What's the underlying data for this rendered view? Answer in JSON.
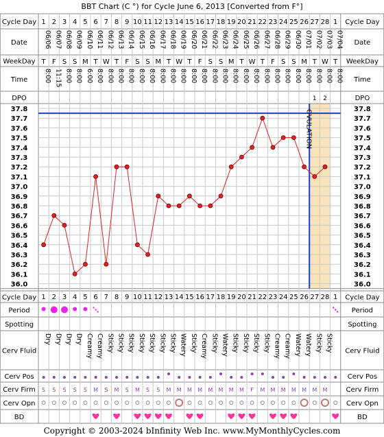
{
  "title": "BBT Chart (C °) for Cycle June 6, 2013  [Converted from F°]",
  "footer": "Copyright © 2003-2024 bInfinity Web Inc.    www.MyMonthlyCycles.com",
  "ovulation_label": "OVULATION",
  "row_labels": {
    "cycle_day": "Cycle Day",
    "date": "Date",
    "weekday": "WeekDay",
    "time": "Time",
    "dpo": "DPO",
    "period": "Period",
    "spotting": "Spotting",
    "cerv_fluid": "Cerv Fluid",
    "cerv_pos": "Cerv Pos",
    "cerv_firm": "Cerv Firm",
    "cerv_opn": "Cerv Opn",
    "bd": "BD"
  },
  "columns": {
    "cycle_days": [
      "1",
      "2",
      "3",
      "4",
      "5",
      "6",
      "7",
      "8",
      "9",
      "10",
      "11",
      "12",
      "13",
      "14",
      "15",
      "16",
      "17",
      "18",
      "19",
      "20",
      "21",
      "22",
      "23",
      "24",
      "25",
      "26",
      "27",
      "28",
      "1"
    ],
    "dates": [
      "06/06",
      "06/07",
      "06/08",
      "06/09",
      "06/10",
      "06/11",
      "06/12",
      "06/13",
      "06/14",
      "06/15",
      "06/16",
      "06/17",
      "06/18",
      "06/19",
      "06/20",
      "06/21",
      "06/22",
      "06/23",
      "06/24",
      "06/25",
      "06/26",
      "06/27",
      "06/28",
      "06/29",
      "06/30",
      "07/01",
      "07/02",
      "07/03",
      "07/04"
    ],
    "weekdays": [
      "T",
      "F",
      "S",
      "S",
      "M",
      "T",
      "W",
      "T",
      "F",
      "S",
      "S",
      "M",
      "T",
      "W",
      "T",
      "F",
      "S",
      "S",
      "M",
      "T",
      "W",
      "T",
      "F",
      "S",
      "S",
      "M",
      "T",
      "W",
      "T"
    ],
    "times": [
      "8:00",
      "11:15",
      "8:00",
      "8:00",
      "6:00",
      "8:00",
      "8:00",
      "8:00",
      "8:00",
      "8:00",
      "8:00",
      "8:00",
      "8:00",
      "8:00",
      "8:00",
      "8:00",
      "8:00",
      "8:00",
      "8:00",
      "8:00",
      "8:00",
      "8:00",
      "8:00",
      "8:00",
      "8:00",
      "8:00",
      "8:00",
      "8:00",
      "8:00"
    ],
    "dpo": [
      "",
      "",
      "",
      "",
      "",
      "",
      "",
      "",
      "",
      "",
      "",
      "",
      "",
      "",
      "",
      "",
      "",
      "",
      "",
      "",
      "",
      "",
      "",
      "",
      "",
      "",
      "1",
      "2",
      ""
    ],
    "period": [
      "medium",
      "heavy",
      "heavy",
      "medium",
      "medium",
      "spotting",
      "",
      "",
      "",
      "",
      "",
      "",
      "",
      "",
      "",
      "",
      "",
      "",
      "",
      "",
      "",
      "",
      "",
      "",
      "",
      "",
      "",
      "",
      "spotting"
    ],
    "cerv_fluid": [
      "Dry",
      "Dry",
      "Dry",
      "Dry",
      "Creamy",
      "Creamy",
      "Sticky",
      "Sticky",
      "Sticky",
      "Sticky",
      "Sticky",
      "Sticky",
      "Sticky",
      "Watery",
      "Sticky",
      "Creamy",
      "Sticky",
      "Watery",
      "Sticky",
      "Sticky",
      "Sticky",
      "Sticky",
      "Creamy",
      "Creamy",
      "Watery",
      "Watery",
      "Sticky",
      "Sticky",
      ""
    ],
    "cerv_pos": [
      "low",
      "low",
      "low",
      "low",
      "low",
      "low",
      "low",
      "low",
      "low",
      "low",
      "low",
      "low",
      "mid",
      "low",
      "low",
      "low",
      "low",
      "mid",
      "low",
      "low",
      "mid",
      "mid",
      "low",
      "low",
      "mid",
      "low",
      "low",
      "low",
      "low"
    ],
    "cerv_firm": [
      "S",
      "S",
      "S",
      "S",
      "S",
      "M",
      "S",
      "M",
      "S",
      "M",
      "S",
      "S",
      "M",
      "M",
      "M",
      "M",
      "M",
      "M",
      "M",
      "M",
      "F",
      "M",
      "M",
      "M",
      "M",
      "M",
      "M",
      "M",
      ""
    ],
    "cerv_opn": [
      "small",
      "small",
      "small",
      "small",
      "small",
      "small",
      "small",
      "small",
      "small",
      "small",
      "small",
      "small",
      "small",
      "large",
      "small",
      "small",
      "small",
      "small",
      "small",
      "small",
      "small",
      "small",
      "small",
      "small",
      "small",
      "large",
      "small",
      "large",
      "small"
    ],
    "bd": [
      false,
      false,
      false,
      false,
      false,
      true,
      false,
      true,
      false,
      true,
      true,
      true,
      true,
      false,
      true,
      true,
      false,
      false,
      true,
      true,
      true,
      false,
      true,
      true,
      true,
      false,
      false,
      false,
      true
    ]
  },
  "chart_data": {
    "type": "line",
    "title": "BBT Chart (C °) for Cycle June 6, 2013  [Converted from F°]",
    "xlabel": "Cycle Day",
    "ylabel": "",
    "ylim": [
      36.0,
      37.8
    ],
    "y_ticks": [
      "37.8",
      "37.7",
      "37.6",
      "37.5",
      "37.4",
      "37.3",
      "37.2",
      "37.1",
      "37.0",
      "36.9",
      "36.8",
      "36.7",
      "36.6",
      "36.5",
      "36.4",
      "36.3",
      "36.2",
      "36.1",
      "36.0"
    ],
    "x": [
      1,
      2,
      3,
      4,
      5,
      6,
      7,
      8,
      9,
      10,
      11,
      12,
      13,
      14,
      15,
      16,
      17,
      18,
      19,
      20,
      21,
      22,
      23,
      24,
      25,
      26,
      27,
      28
    ],
    "series": [
      {
        "values": [
          36.4,
          36.7,
          36.6,
          36.1,
          36.2,
          37.1,
          36.2,
          37.2,
          37.2,
          36.4,
          36.3,
          36.9,
          36.8,
          36.8,
          36.9,
          36.8,
          36.8,
          36.9,
          37.2,
          37.3,
          37.4,
          37.7,
          37.4,
          37.5,
          37.5,
          37.2,
          37.1,
          37.2
        ]
      }
    ],
    "coverline": 37.75,
    "ovulation_day": 26,
    "luteal_start_day": 27,
    "grid": true,
    "colors": {
      "line": "#dd2222",
      "point": "#dd2222",
      "coverline": "#1a3fcc",
      "ovulation": "#1a3fcc",
      "luteal_fill": "#f9e3b9",
      "period": "#ee22ee",
      "bd": "#ff3399",
      "cervix": "#8844aa"
    }
  }
}
